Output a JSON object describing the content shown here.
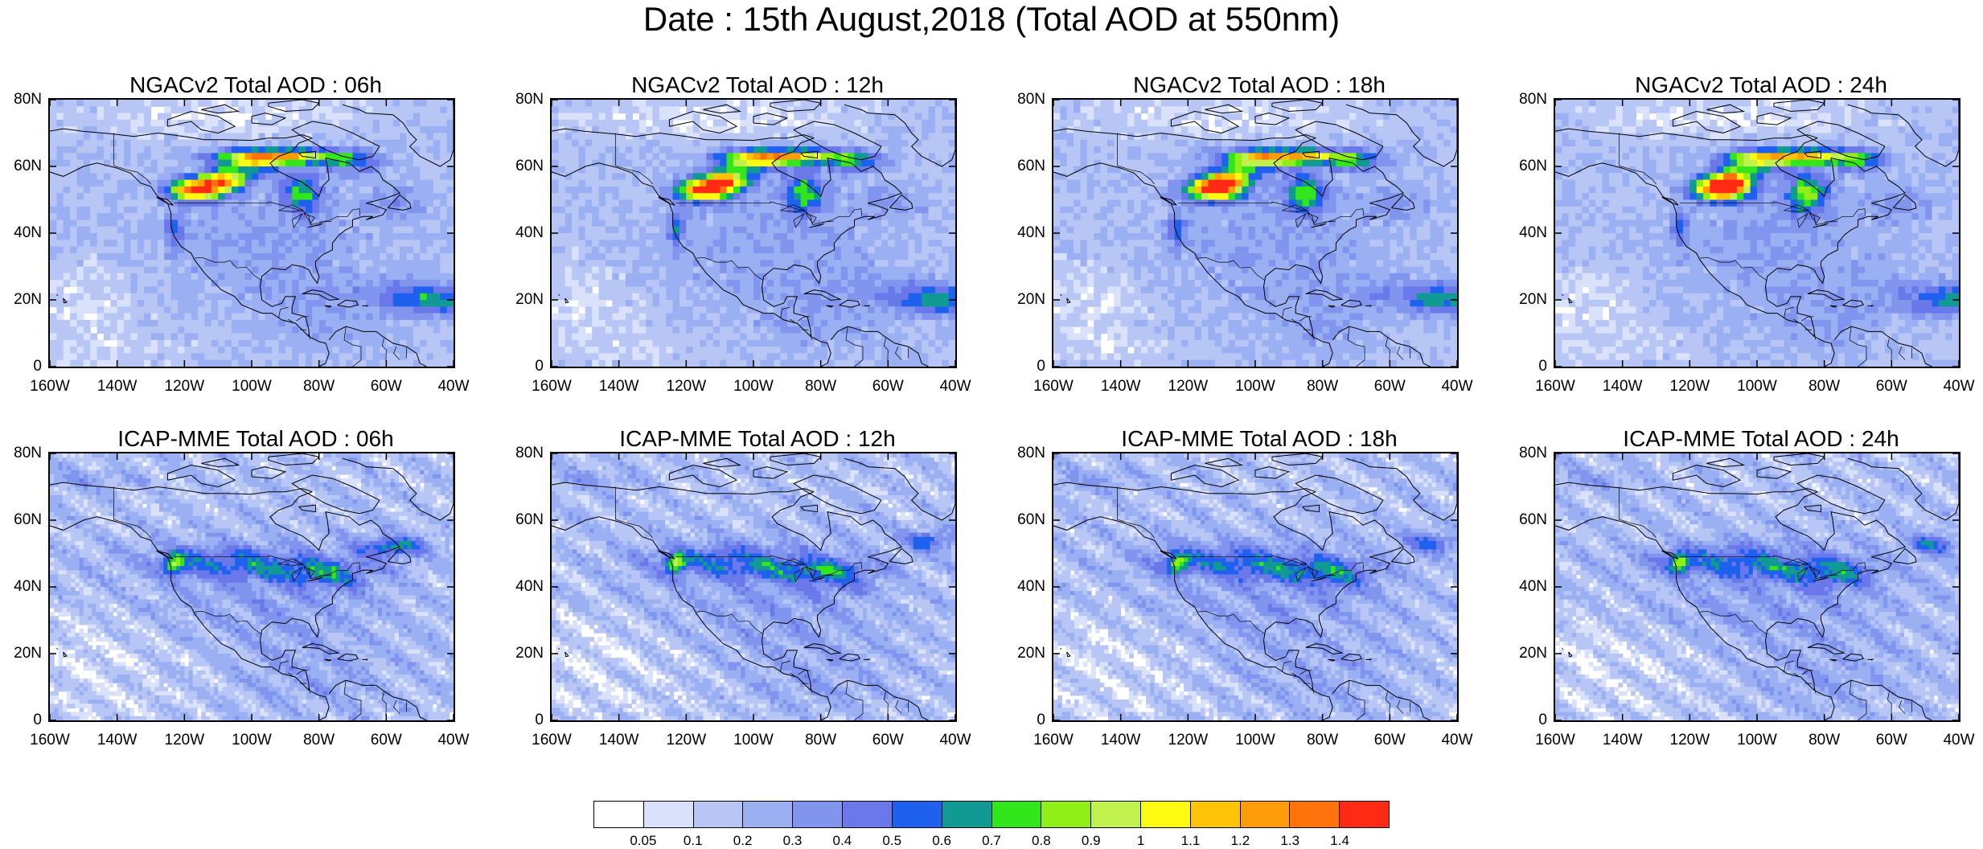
{
  "title": "Date : 15th August,2018 (Total AOD at 550nm)",
  "lat_ticks": [
    "80N",
    "60N",
    "40N",
    "20N",
    "0"
  ],
  "lon_ticks": [
    "160W",
    "140W",
    "120W",
    "100W",
    "80W",
    "60W",
    "40W"
  ],
  "panels": [
    {
      "title": "NGACv2 Total AOD : 06h",
      "model": "NGACv2",
      "forecast_hour": "06h"
    },
    {
      "title": "NGACv2 Total AOD : 12h",
      "model": "NGACv2",
      "forecast_hour": "12h"
    },
    {
      "title": "NGACv2 Total AOD : 18h",
      "model": "NGACv2",
      "forecast_hour": "18h"
    },
    {
      "title": "NGACv2 Total AOD : 24h",
      "model": "NGACv2",
      "forecast_hour": "24h"
    },
    {
      "title": "ICAP-MME Total AOD : 06h",
      "model": "ICAP-MME",
      "forecast_hour": "06h"
    },
    {
      "title": "ICAP-MME Total AOD : 12h",
      "model": "ICAP-MME",
      "forecast_hour": "12h"
    },
    {
      "title": "ICAP-MME Total AOD : 18h",
      "model": "ICAP-MME",
      "forecast_hour": "18h"
    },
    {
      "title": "ICAP-MME Total AOD : 24h",
      "model": "ICAP-MME",
      "forecast_hour": "24h"
    }
  ],
  "colorbar": {
    "labels": [
      "0.05",
      "0.1",
      "0.2",
      "0.3",
      "0.4",
      "0.5",
      "0.6",
      "0.7",
      "0.8",
      "0.9",
      "1",
      "1.1",
      "1.2",
      "1.3",
      "1.4"
    ],
    "colors": [
      "#ffffff",
      "#d9e1fb",
      "#b8c6f5",
      "#9bb0f2",
      "#8194ee",
      "#6a78e9",
      "#1f61ef",
      "#119a93",
      "#33e61b",
      "#8fef17",
      "#c0f14f",
      "#fffa12",
      "#ffc408",
      "#ff9c0a",
      "#ff720c",
      "#ff2a14"
    ]
  }
}
